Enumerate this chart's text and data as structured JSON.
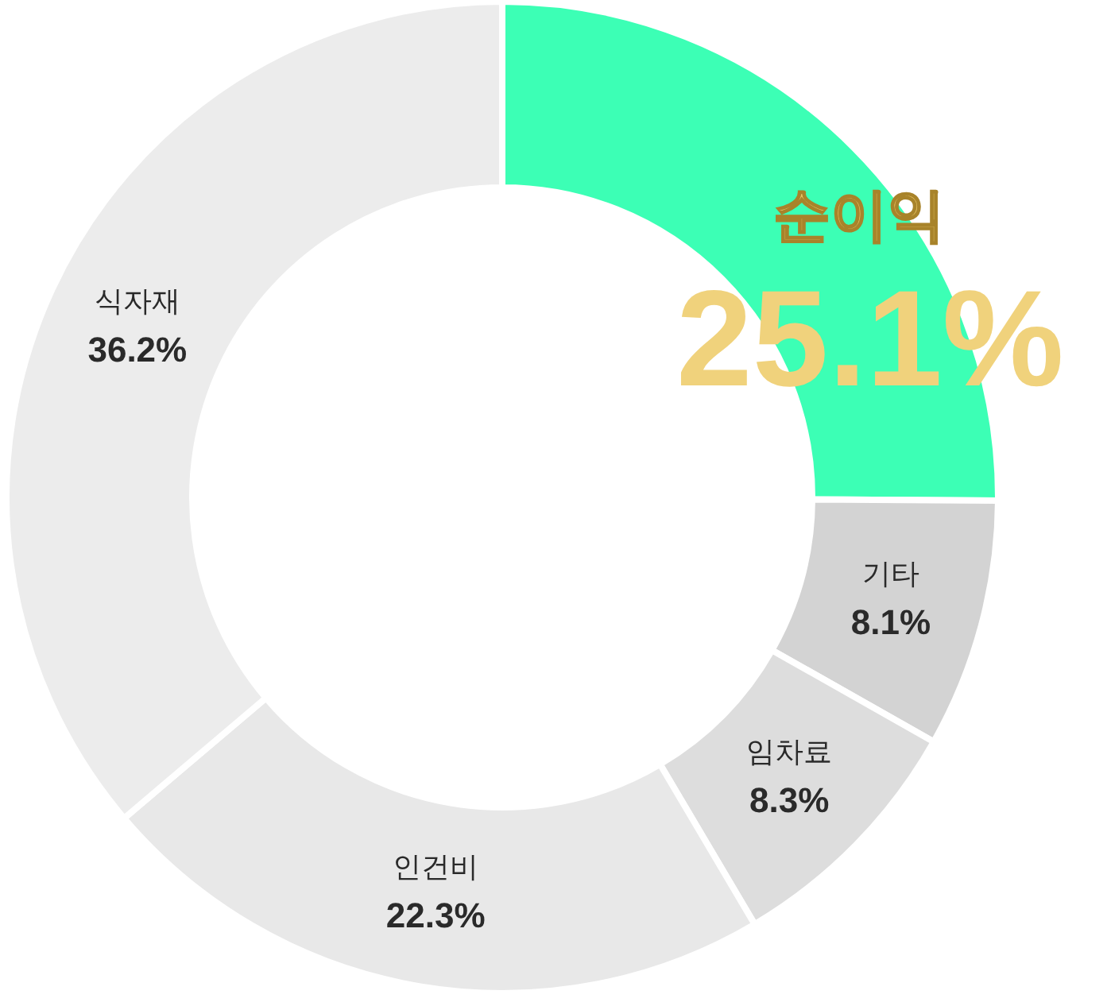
{
  "chart_data": {
    "type": "donut",
    "categories": [
      "순이익",
      "기타",
      "임차료",
      "인건비",
      "식자재"
    ],
    "values": [
      25.1,
      8.1,
      8.3,
      22.3,
      36.2
    ],
    "colors": [
      "#3cffb5",
      "#d3d3d3",
      "#dddddd",
      "#e8e8e8",
      "#ececec"
    ],
    "value_labels": [
      "25.1%",
      "8.1%",
      "8.3%",
      "22.3%",
      "36.2%"
    ]
  }
}
